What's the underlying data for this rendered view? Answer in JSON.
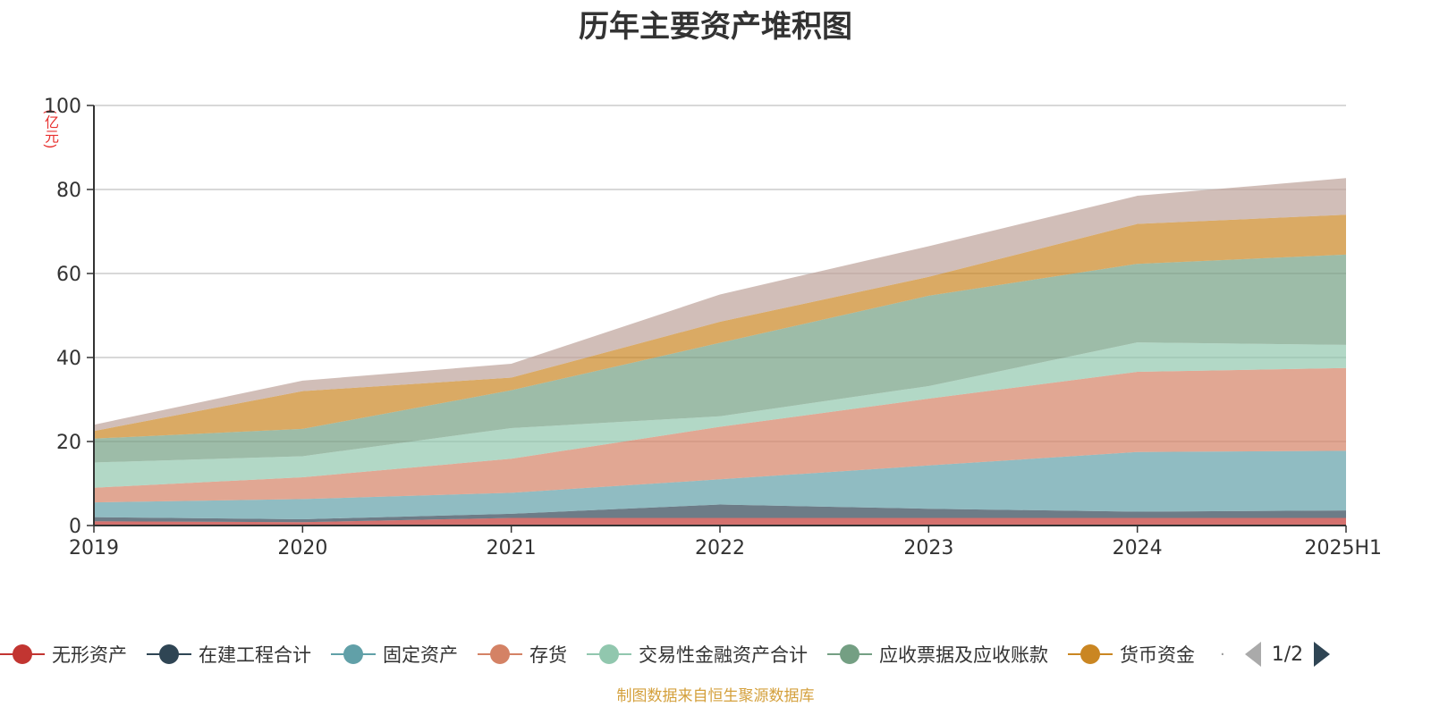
{
  "chart_data": {
    "type": "area",
    "stacked": true,
    "title": "历年主要资产堆积图",
    "ylabel": "(亿元)",
    "ylim": [
      0,
      100
    ],
    "yticks": [
      "0",
      "20",
      "40",
      "60",
      "80",
      "100"
    ],
    "grid": true,
    "legend_placement": "bottom",
    "categories": [
      "2019",
      "2020",
      "2021",
      "2022",
      "2023",
      "2024",
      "2025H1"
    ],
    "series": [
      {
        "name": "无形资产",
        "color": "#c23531",
        "values": [
          1.0,
          0.8,
          1.8,
          1.8,
          1.8,
          1.8,
          1.8
        ]
      },
      {
        "name": "在建工程合计",
        "color": "#2f4554",
        "values": [
          1.0,
          0.7,
          1.0,
          3.2,
          2.2,
          1.5,
          1.8
        ]
      },
      {
        "name": "固定资产",
        "color": "#61a0a8",
        "values": [
          3.5,
          4.8,
          5.0,
          6.0,
          10.3,
          14.2,
          14.2
        ]
      },
      {
        "name": "存货",
        "color": "#d48265",
        "values": [
          3.5,
          5.2,
          8.1,
          12.5,
          15.9,
          19.1,
          19.7
        ]
      },
      {
        "name": "交易性金融资产合计",
        "color": "#91c7ae",
        "values": [
          6.0,
          5.0,
          7.3,
          2.5,
          3.0,
          7.0,
          5.5
        ]
      },
      {
        "name": "应收票据及应收账款",
        "color": "#749f83",
        "values": [
          5.7,
          6.5,
          9.0,
          17.5,
          21.5,
          18.7,
          21.5
        ]
      },
      {
        "name": "货币资金",
        "color": "#ca8622",
        "values": [
          1.8,
          9.0,
          3.0,
          5.0,
          4.5,
          9.5,
          9.5
        ]
      },
      {
        "name": "",
        "color": "#bda29a",
        "values": [
          1.5,
          2.5,
          3.3,
          6.5,
          7.3,
          6.7,
          8.7
        ]
      }
    ],
    "legend_page": "1/2",
    "legend_more": "·"
  },
  "source_note": "制图数据来自恒生聚源数据库"
}
